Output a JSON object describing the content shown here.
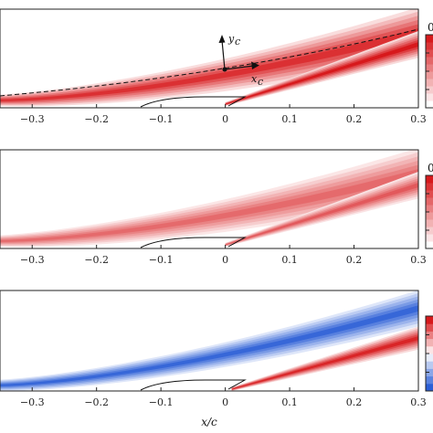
{
  "chart_data": [
    {
      "type": "heatmap",
      "panel": "top",
      "colormap": "white-to-red",
      "colors": {
        "low": "#ffffff",
        "high": "#d7191c"
      },
      "xlim": [
        -0.35,
        0.3
      ],
      "x_ticks": [
        "−0.3",
        "−0.2",
        "−0.1",
        "0",
        "0.1",
        "0.2",
        "0.3"
      ],
      "x_tick_values": [
        -0.3,
        -0.2,
        -0.1,
        0,
        0.1,
        0.2,
        0.3
      ],
      "colorbar_label_visible": "0",
      "features": [
        "upstream shear layer band",
        "wake band",
        "dashed curvilinear coordinate line",
        "local coordinate axes"
      ],
      "annotations": [
        "y",
        "c",
        "x",
        "c"
      ]
    },
    {
      "type": "heatmap",
      "panel": "middle",
      "colormap": "white-to-red",
      "colors": {
        "low": "#ffffff",
        "high": "#d7191c"
      },
      "xlim": [
        -0.35,
        0.3
      ],
      "x_ticks": [
        "−0.3",
        "−0.2",
        "−0.1",
        "0",
        "0.1",
        "0.2",
        "0.3"
      ],
      "x_tick_values": [
        -0.3,
        -0.2,
        -0.1,
        0,
        0.1,
        0.2,
        0.3
      ],
      "colorbar_label_visible": "0",
      "features": [
        "upstream shear layer band",
        "wake band"
      ]
    },
    {
      "type": "heatmap",
      "panel": "bottom",
      "colormap": "blue-white-red",
      "colors": {
        "low": "#2c5fd6",
        "mid": "#ffffff",
        "high": "#d7191c"
      },
      "xlim": [
        -0.35,
        0.3
      ],
      "x_ticks": [
        "−0.3",
        "−0.2",
        "−0.1",
        "0",
        "0.1",
        "0.2",
        "0.3"
      ],
      "x_tick_values": [
        -0.3,
        -0.2,
        -0.1,
        0,
        0.1,
        0.2,
        0.3
      ],
      "xlabel": "x/c",
      "features": [
        "negative (blue) upper band",
        "positive (red) wake band"
      ]
    }
  ]
}
